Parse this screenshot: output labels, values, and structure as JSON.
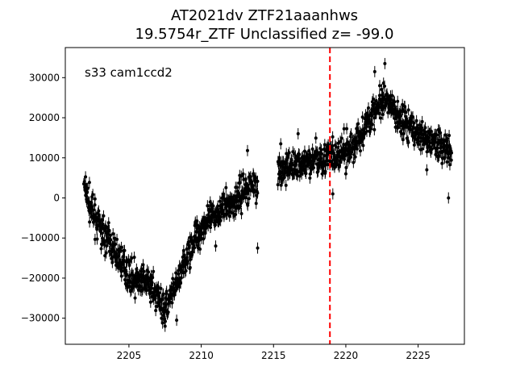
{
  "chart_data": {
    "type": "scatter",
    "title_line1": "AT2021dv  ZTF21aaanhws",
    "title_line2": "19.5754r_ZTF Unclassified z= -99.0",
    "annotation": "s33 cam1ccd2",
    "xlabel": "",
    "ylabel": "",
    "xlim": [
      2200.6,
      2228.2
    ],
    "ylim": [
      -36500,
      37500
    ],
    "x_ticks": [
      2205,
      2210,
      2215,
      2220,
      2225
    ],
    "y_ticks": [
      -30000,
      -20000,
      -10000,
      0,
      10000,
      20000,
      30000
    ],
    "vline": {
      "x": 2218.9,
      "color": "#ff0000",
      "style": "dashed"
    },
    "marker_color": "#000000",
    "grid": false,
    "legend": "none",
    "segments": [
      {
        "x": [
          2201.9,
          2202.5,
          2203.0,
          2203.5,
          2204.0,
          2204.5,
          2205.0,
          2205.5,
          2206.0,
          2206.5,
          2207.0,
          2207.5,
          2208.0,
          2208.5,
          2209.0,
          2209.5,
          2210.0,
          2210.5,
          2211.0,
          2211.5,
          2212.0,
          2212.5,
          2213.0,
          2213.5,
          2213.9
        ],
        "y": [
          3000,
          -4000,
          -7500,
          -10000,
          -13500,
          -16000,
          -19000,
          -20500,
          -21000,
          -22000,
          -24500,
          -27500,
          -24500,
          -20000,
          -15000,
          -10000,
          -7500,
          -5500,
          -4500,
          -2500,
          -1500,
          0,
          2000,
          3500,
          4000
        ]
      },
      {
        "x": [
          2215.3,
          2215.8,
          2216.3,
          2216.8,
          2217.3,
          2217.8,
          2218.3,
          2218.8,
          2219.3,
          2219.8,
          2220.3,
          2220.8,
          2221.3,
          2221.8,
          2222.3,
          2222.8,
          2223.3,
          2223.8,
          2224.3,
          2224.8,
          2225.3,
          2225.8,
          2226.3,
          2226.8,
          2227.3
        ],
        "y": [
          5500,
          7000,
          8000,
          8500,
          9000,
          9500,
          10000,
          10500,
          10000,
          11000,
          12000,
          14500,
          17500,
          21000,
          23000,
          23500,
          22000,
          20000,
          18000,
          16500,
          15500,
          14500,
          14000,
          13000,
          11000
        ]
      }
    ],
    "spread": 1900,
    "outliers": [
      {
        "x": 2222.7,
        "y": 33500
      },
      {
        "x": 2222.0,
        "y": 31500
      },
      {
        "x": 2213.2,
        "y": 11800
      },
      {
        "x": 2213.9,
        "y": -12500
      },
      {
        "x": 2207.5,
        "y": -32000
      },
      {
        "x": 2211.0,
        "y": -12000
      },
      {
        "x": 2219.1,
        "y": 1000
      },
      {
        "x": 2227.1,
        "y": 0
      },
      {
        "x": 2215.5,
        "y": 13500
      },
      {
        "x": 2208.3,
        "y": -30500
      },
      {
        "x": 2206.5,
        "y": -26000
      },
      {
        "x": 2216.7,
        "y": 16000
      },
      {
        "x": 2225.6,
        "y": 7000
      },
      {
        "x": 2220.0,
        "y": 6000
      }
    ]
  }
}
